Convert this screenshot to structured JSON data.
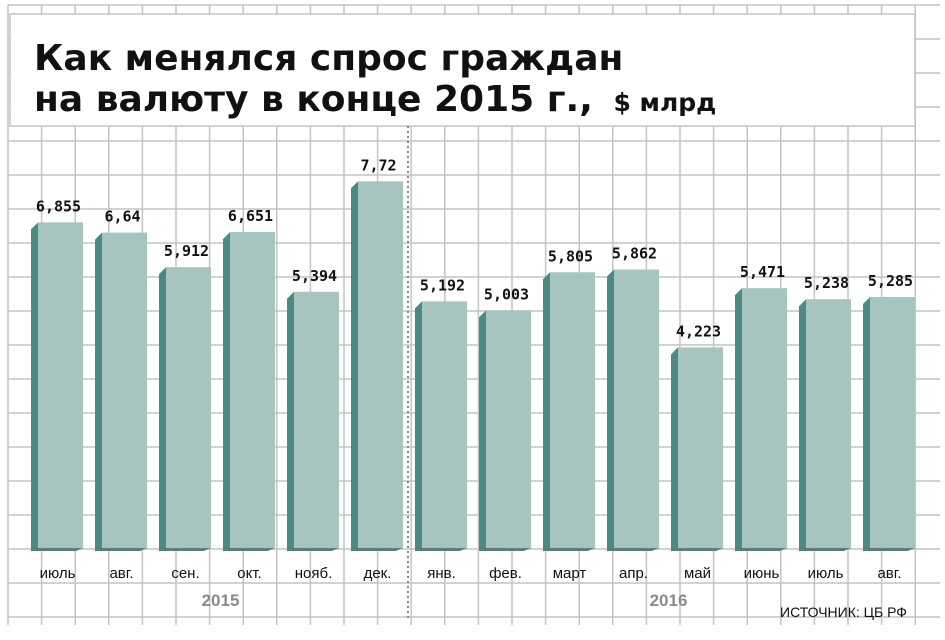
{
  "chart_data": {
    "type": "bar",
    "title": "Как менялся спрос граждан на валюту в конце 2015 г.,",
    "unit": "$ млрд",
    "categories": [
      "июль",
      "авг.",
      "сен.",
      "окт.",
      "нояб.",
      "дек.",
      "янв.",
      "фев.",
      "март",
      "апр.",
      "май",
      "июнь",
      "июль",
      "авг."
    ],
    "values": [
      6.855,
      6.64,
      5.912,
      6.651,
      5.394,
      7.72,
      5.192,
      5.003,
      5.805,
      5.862,
      4.223,
      5.471,
      5.238,
      5.285
    ],
    "value_labels": [
      "6,855",
      "6,64",
      "5,912",
      "6,651",
      "5,394",
      "7,72",
      "5,192",
      "5,003",
      "5,805",
      "5,862",
      "4,223",
      "5,471",
      "5,238",
      "5,285"
    ],
    "groups": [
      {
        "label": "2015",
        "count": 6
      },
      {
        "label": "2016",
        "count": 8
      }
    ],
    "ylim": [
      0,
      8
    ],
    "grid": true,
    "legend": "none",
    "source": "ИСТОЧНИК: ЦБ РФ",
    "colors": {
      "bar_front": "#a6c4c0",
      "bar_side": "#4a8a82",
      "bar_shadow": "#5c7d79",
      "grid": "#c4c4c4",
      "divider": "#888888"
    }
  }
}
